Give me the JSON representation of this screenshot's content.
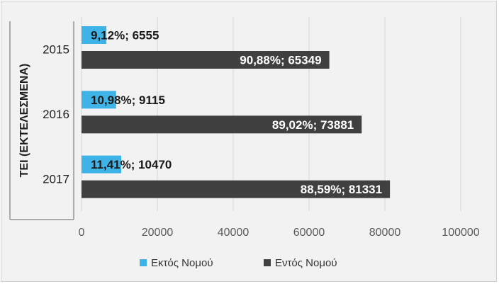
{
  "chart_data": {
    "type": "bar",
    "orientation": "horizontal",
    "group_label": "ΤΕΙ (ΕΚΤΕΛΕΣΜΕΝΑ)",
    "categories": [
      "2015",
      "2016",
      "2017"
    ],
    "series": [
      {
        "name": "Εκτός Νομού",
        "color": "#3db3e8",
        "values": [
          6555,
          9115,
          10470
        ],
        "labels": [
          "9,12%; 6555",
          "10,98%; 9115",
          "11,41%; 10470"
        ]
      },
      {
        "name": "Εντός Νομού",
        "color": "#404040",
        "values": [
          65349,
          73881,
          81331
        ],
        "labels": [
          "90,88%; 65349",
          "89,02%; 73881",
          "88,59%; 81331"
        ]
      }
    ],
    "xlim": [
      0,
      100000
    ],
    "xticks": [
      "0",
      "20000",
      "40000",
      "60000",
      "80000",
      "100000"
    ],
    "grid": true,
    "legend_position": "bottom"
  }
}
